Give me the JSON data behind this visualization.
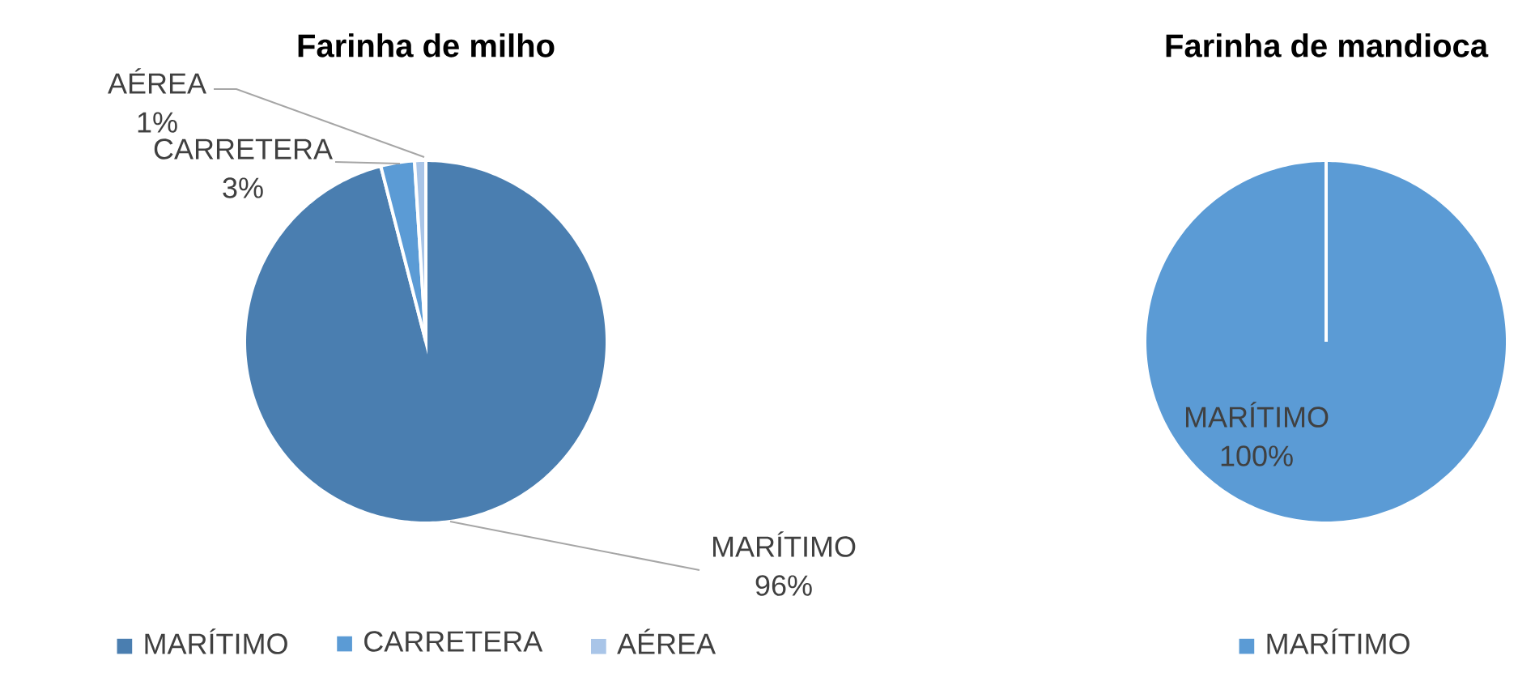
{
  "chart_data": [
    {
      "type": "pie",
      "title": "Farinha de milho",
      "categories": [
        "MARÍTIMO",
        "CARRETERA",
        "AÉREA"
      ],
      "values": [
        96,
        3,
        1
      ],
      "colors": [
        "#4a7eb0",
        "#5b9bd5",
        "#a9c5e8"
      ],
      "value_labels": [
        "96%",
        "3%",
        "1%"
      ],
      "legend": "bottom"
    },
    {
      "type": "pie",
      "title": "Farinha de mandioca",
      "categories": [
        "MARÍTIMO"
      ],
      "values": [
        100
      ],
      "colors": [
        "#5b9bd5"
      ],
      "value_labels": [
        "100%"
      ],
      "legend": "bottom"
    }
  ]
}
